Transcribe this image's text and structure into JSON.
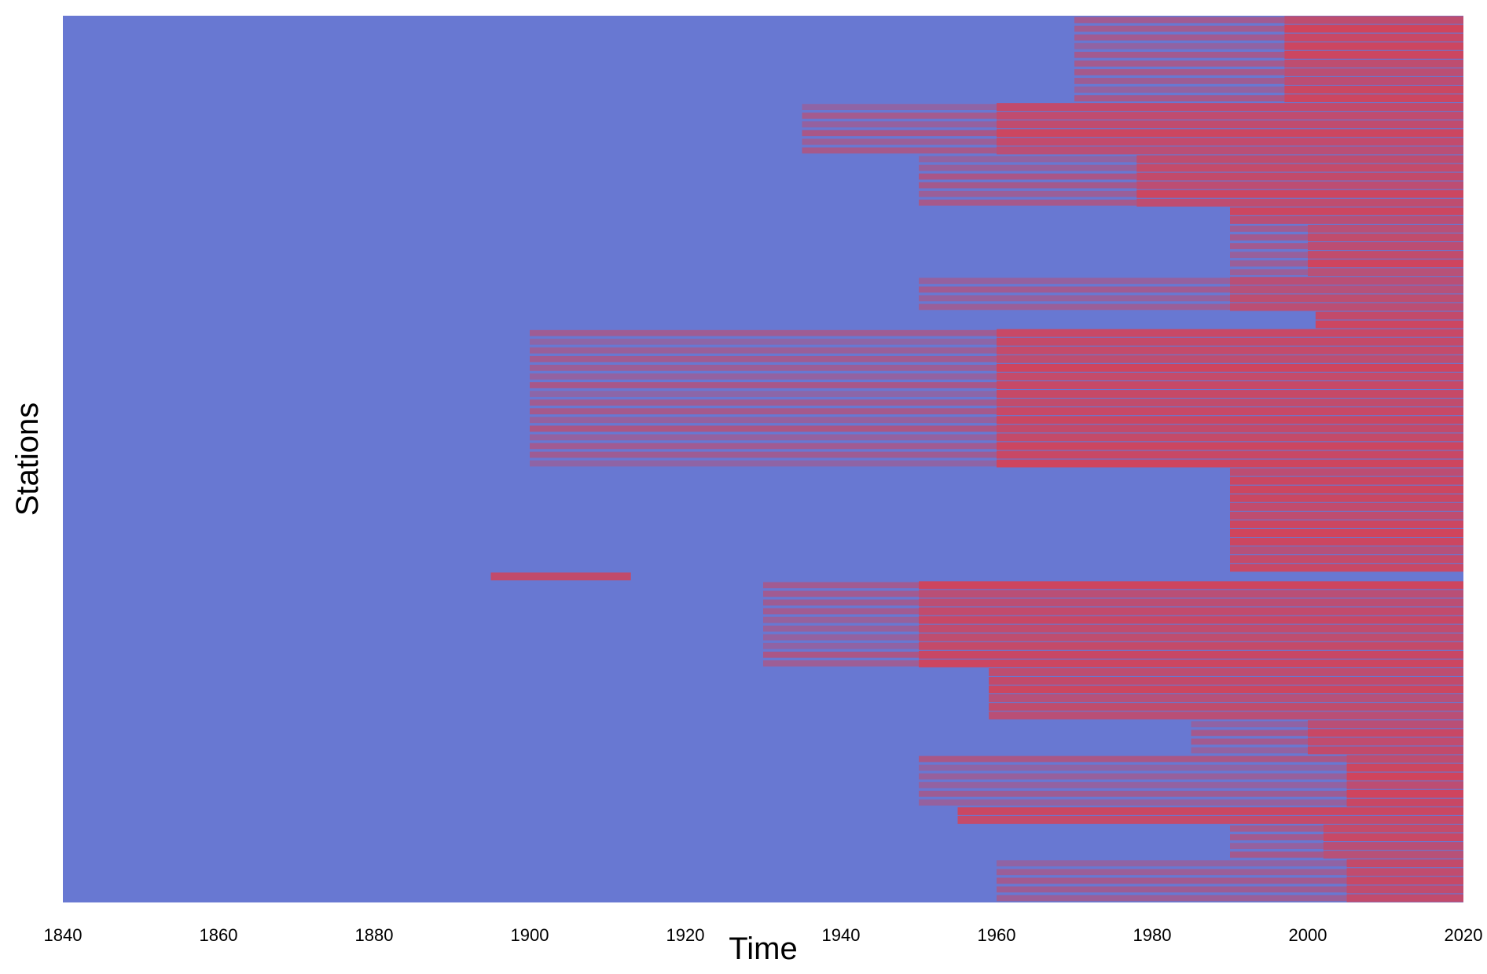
{
  "chart_data": {
    "type": "heatmap",
    "title": "",
    "xlabel": "Time",
    "ylabel": "Stations",
    "xlim": [
      1840,
      2020
    ],
    "x_ticks": [
      1840,
      1860,
      1880,
      1900,
      1920,
      1940,
      1960,
      1980,
      2000,
      2020
    ],
    "y_ticks": [],
    "grid": false,
    "legend": "none",
    "colors": {
      "absent": "#6878d2",
      "present": "#d0445c"
    },
    "value_semantics": "per-station record present (red) vs absent (blue) over time",
    "station_groups": [
      {
        "rows": 10,
        "start_year": 1970,
        "dense_from": 1997
      },
      {
        "rows": 6,
        "start_year": 1935,
        "dense_from": 1960
      },
      {
        "rows": 6,
        "start_year": 1950,
        "dense_from": 1978
      },
      {
        "rows": 2,
        "start_year": 1990,
        "dense_from": 1990
      },
      {
        "rows": 6,
        "start_year": 1990,
        "dense_from": 2000
      },
      {
        "rows": 4,
        "start_year": 1950,
        "dense_from": 1990
      },
      {
        "rows": 2,
        "start_year": 2001,
        "dense_from": 2001
      },
      {
        "rows": 16,
        "start_year": 1900,
        "dense_from": 1960
      },
      {
        "rows": 12,
        "start_year": 1990,
        "dense_from": 1990
      },
      {
        "rows": 1,
        "start_year": 1895,
        "end_year": 1913,
        "dense_from": 1895
      },
      {
        "rows": 10,
        "start_year": 1930,
        "dense_from": 1950
      },
      {
        "rows": 6,
        "start_year": 1959,
        "dense_from": 1959
      },
      {
        "rows": 4,
        "start_year": 1985,
        "dense_from": 2000
      },
      {
        "rows": 6,
        "start_year": 1950,
        "dense_from": 2005
      },
      {
        "rows": 2,
        "start_year": 1955,
        "dense_from": 1955
      },
      {
        "rows": 4,
        "start_year": 1990,
        "dense_from": 2002
      },
      {
        "rows": 5,
        "start_year": 1960,
        "dense_from": 2005
      }
    ]
  }
}
